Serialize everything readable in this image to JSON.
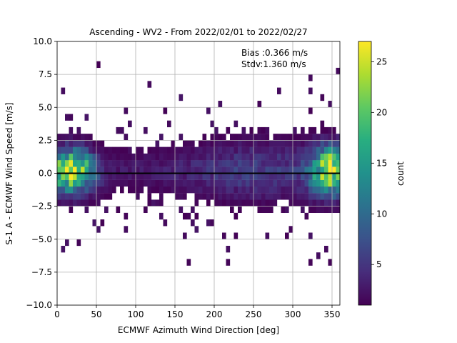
{
  "chart_data": {
    "type": "heatmap",
    "title": "Ascending - WV2 - From 2022/02/01 to 2022/02/27",
    "xlabel": "ECMWF Azimuth Wind Direction [deg]",
    "ylabel": "S-1 A - ECMWF Wind Speed [m/s]",
    "xlim": [
      0,
      360
    ],
    "ylim": [
      -10,
      10
    ],
    "x_ticks": [
      "0",
      "50",
      "100",
      "150",
      "200",
      "250",
      "300",
      "350"
    ],
    "y_ticks": [
      "−10.0",
      "−7.5",
      "−5.0",
      "−2.5",
      "0.0",
      "2.5",
      "5.0",
      "7.5",
      "10.0"
    ],
    "grid": true,
    "annotations": [
      "Bias :0.366 m/s",
      "Stdv:1.360 m/s"
    ],
    "reference_line": {
      "y": 0,
      "color": "#000000"
    },
    "colorbar": {
      "label": "count",
      "range": [
        1,
        27
      ],
      "ticks": [
        "5",
        "10",
        "15",
        "20",
        "25"
      ],
      "colormap": "viridis"
    },
    "bin_size": {
      "x": 5,
      "y": 0.5
    },
    "density_profile": {
      "x_peaks_deg": [
        20,
        350
      ],
      "core_y_range": [
        -2.5,
        2.5
      ],
      "max_count": 27
    }
  }
}
